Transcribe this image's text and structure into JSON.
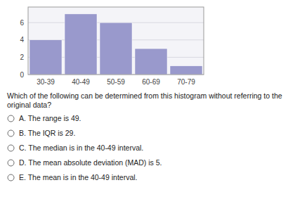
{
  "chart_data": {
    "type": "bar",
    "categories": [
      "30-39",
      "40-49",
      "50-59",
      "60-69",
      "70-79"
    ],
    "values": [
      4,
      7,
      6,
      3,
      1
    ],
    "color": "#9999cc",
    "ylim": [
      0,
      7.8
    ],
    "yticks": [
      0,
      2,
      4,
      6
    ],
    "grid": true,
    "annotations": [
      "Which of the following can be determined from this histogram without referring to the original data?",
      "A. The range is 49.",
      "B. The IQR is 29.",
      "C. The median is in the 40-49 interval.",
      "D. The mean absolute deviation (MAD) is 5.",
      "E. The mean is in the 40-49 interval."
    ]
  }
}
